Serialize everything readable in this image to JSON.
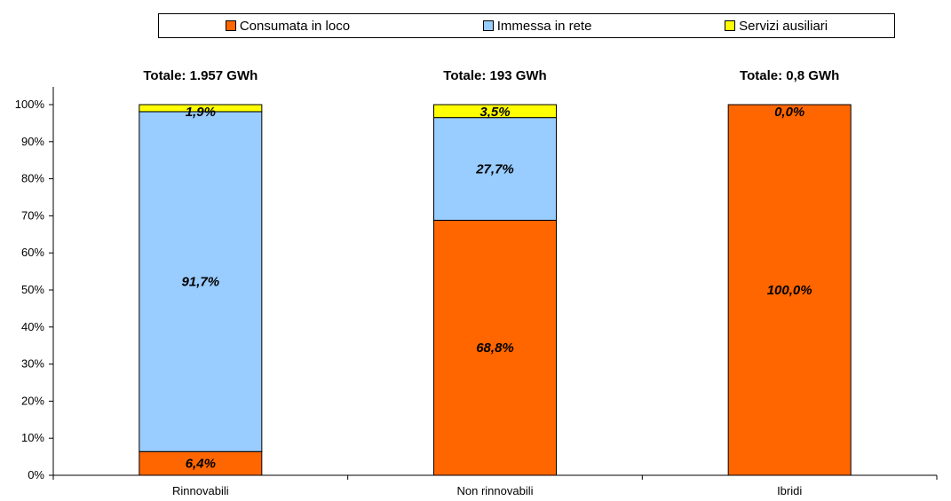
{
  "chart_data": {
    "type": "bar",
    "stacked": true,
    "categories": [
      "Rinnovabili",
      "Non rinnovabili",
      "Ibridi"
    ],
    "totals": [
      "Totale: 1.957 GWh",
      "Totale: 193 GWh",
      "Totale: 0,8 GWh"
    ],
    "series": [
      {
        "name": "Consumata in loco",
        "color": "#FF6600",
        "values": [
          6.4,
          68.8,
          100.0
        ],
        "labels": [
          "6,4%",
          "68,8%",
          "100,0%"
        ]
      },
      {
        "name": "Immessa in rete",
        "color": "#99CCFF",
        "values": [
          91.7,
          27.7,
          0.0
        ],
        "labels": [
          "91,7%",
          "27,7%",
          ""
        ]
      },
      {
        "name": "Servizi ausiliari",
        "color": "#FFFF00",
        "values": [
          1.9,
          3.5,
          0.0
        ],
        "labels": [
          "1,9%",
          "3,5%",
          "0,0%"
        ]
      }
    ],
    "ylim": [
      0,
      100
    ],
    "yticks": [
      "0%",
      "10%",
      "20%",
      "30%",
      "40%",
      "50%",
      "60%",
      "70%",
      "80%",
      "90%",
      "100%"
    ],
    "legend_position": "top",
    "grid": false
  }
}
